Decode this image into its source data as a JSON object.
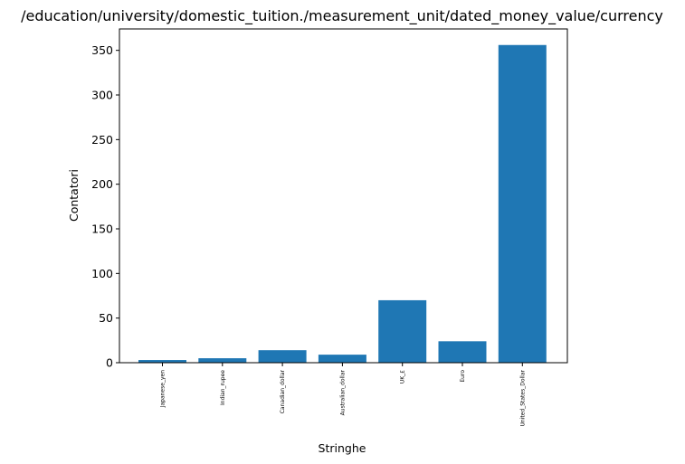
{
  "chart_data": {
    "type": "bar",
    "title": "/education/university/domestic_tuition./measurement_unit/dated_money_value/currency",
    "xlabel": "Stringhe",
    "ylabel": "Contatori",
    "categories": [
      "Japanese_yen",
      "Indian_rupee",
      "Canadian_dollar",
      "Australian_dollar",
      "UK_£",
      "Euro",
      "United_States_Dollar"
    ],
    "values": [
      3,
      5,
      14,
      9,
      70,
      24,
      356
    ],
    "ylim": [
      0,
      374
    ],
    "yticks": [
      0,
      50,
      100,
      150,
      200,
      250,
      300,
      350
    ],
    "grid": false,
    "bar_color": "#1f77b4"
  }
}
